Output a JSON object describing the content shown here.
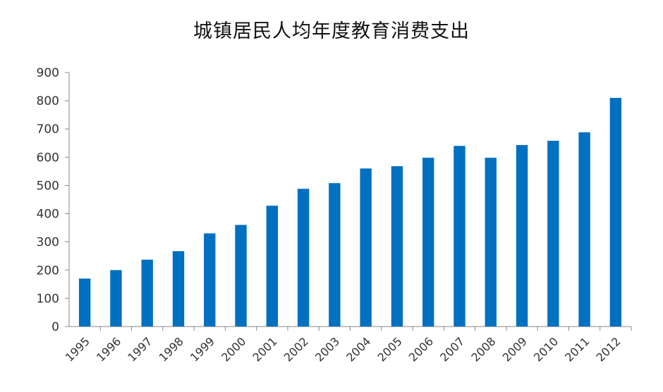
{
  "chart_data": {
    "type": "bar",
    "title": "城镇居民人均年度教育消费支出",
    "xlabel": "",
    "ylabel": "",
    "categories": [
      "1995",
      "1996",
      "1997",
      "1998",
      "1999",
      "2000",
      "2001",
      "2002",
      "2003",
      "2004",
      "2005",
      "2006",
      "2007",
      "2008",
      "2009",
      "2010",
      "2011",
      "2012"
    ],
    "values": [
      170,
      200,
      237,
      267,
      330,
      360,
      428,
      488,
      508,
      560,
      568,
      598,
      640,
      598,
      643,
      658,
      688,
      810
    ],
    "ylim": [
      0,
      900
    ],
    "yticks": [
      0,
      100,
      200,
      300,
      400,
      500,
      600,
      700,
      800,
      900
    ],
    "grid": false,
    "legend": "none",
    "bar_color": "#0070c0"
  }
}
